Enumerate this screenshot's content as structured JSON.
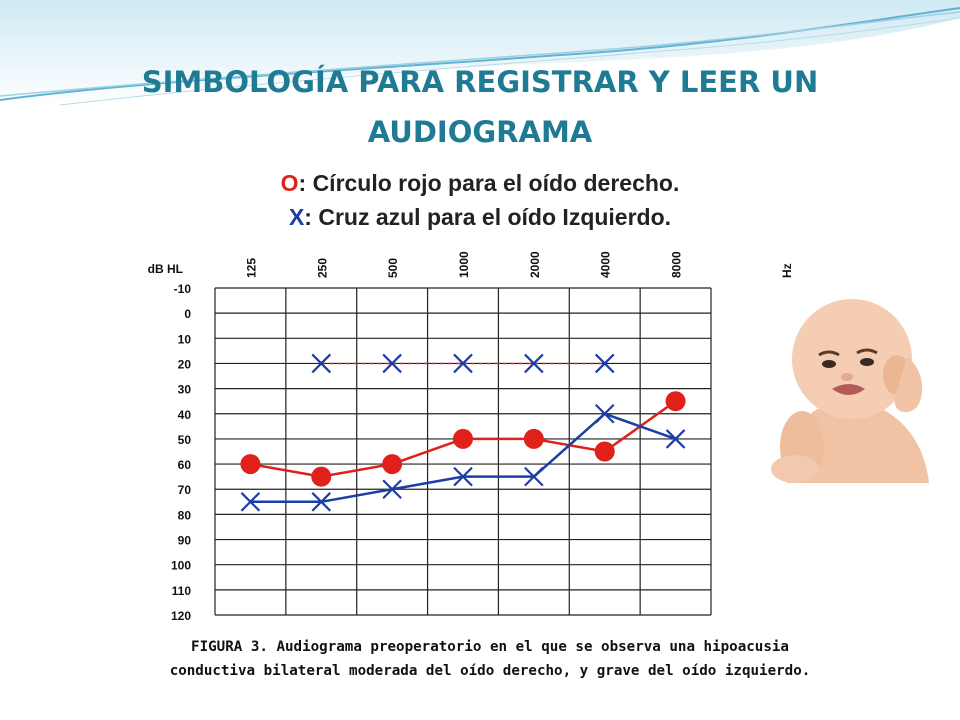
{
  "slide": {
    "title_line1": "SIMBOLOGÍA PARA REGISTRAR Y LEER UN",
    "title_line2": "AUDIOGRAMA",
    "legend_o_symbol": "O",
    "legend_o_text": ": Círculo rojo para el oído derecho.",
    "legend_x_symbol": "X",
    "legend_x_text": ": Cruz azul para el oído Izquierdo.",
    "caption_line1": "FIGURA 3. Audiograma preoperatorio en el que se observa una hipoacusia",
    "caption_line2": "conductiva bilateral moderada del oído derecho, y grave del oído izquierdo.",
    "image_icon": "crying-baby-holding-ear-photo",
    "colors": {
      "title": "#1f7a93",
      "right_ear": "#e0201a",
      "left_ear": "#1c3da6"
    }
  },
  "chart_data": {
    "type": "line",
    "xlabel": "Hz",
    "ylabel": "dB HL",
    "categories": [
      "125",
      "250",
      "500",
      "1000",
      "2000",
      "4000",
      "8000"
    ],
    "y_ticks": [
      "-10",
      "0",
      "10",
      "20",
      "30",
      "40",
      "50",
      "60",
      "70",
      "80",
      "90",
      "100",
      "110",
      "120"
    ],
    "ylim": [
      -10,
      120
    ],
    "y_inverted": true,
    "grid": true,
    "series": [
      {
        "label": "O",
        "color": "#e0201a",
        "marker": "circle",
        "line": "solid",
        "values": [
          60,
          65,
          60,
          50,
          50,
          55,
          35
        ]
      },
      {
        "label": "X",
        "color": "#1c3da6",
        "marker": "x",
        "line": "solid",
        "values": [
          75,
          75,
          70,
          65,
          65,
          40,
          50
        ]
      },
      {
        "label": "X",
        "color": "#1c3da6",
        "marker": "x",
        "line": "dashed",
        "line_color": "#e0201a",
        "values": [
          null,
          20,
          20,
          20,
          20,
          20,
          null
        ]
      }
    ]
  }
}
